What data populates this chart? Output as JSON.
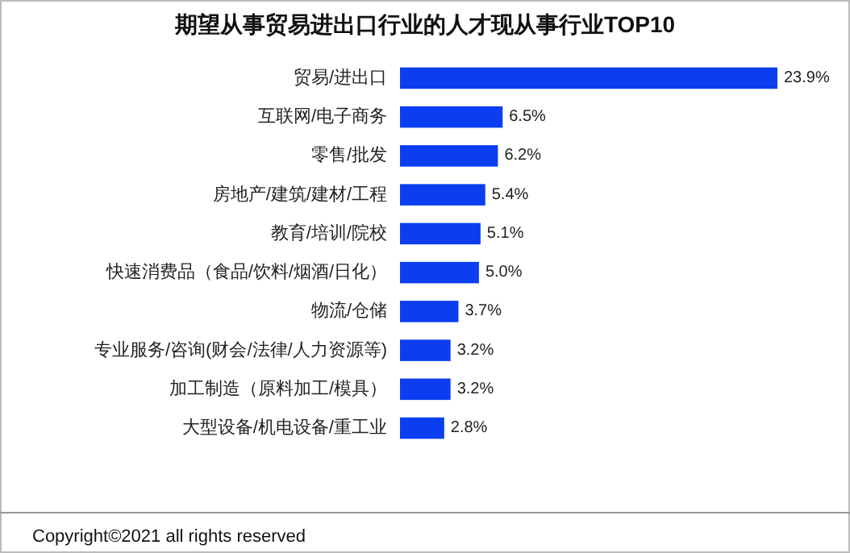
{
  "chart_data": {
    "type": "bar",
    "orientation": "horizontal",
    "title": "期望从事贸易进出口行业的人才现从事行业TOP10",
    "categories": [
      "贸易/进出口",
      "互联网/电子商务",
      "零售/批发",
      "房地产/建筑/建材/工程",
      "教育/培训/院校",
      "快速消费品（食品/饮料/烟酒/日化）",
      "物流/仓储",
      "专业服务/咨询(财会/法律/人力资源等)",
      "加工制造（原料加工/模具）",
      "大型设备/机电设备/重工业"
    ],
    "values": [
      23.9,
      6.5,
      6.2,
      5.4,
      5.1,
      5.0,
      3.7,
      3.2,
      3.2,
      2.8
    ],
    "value_labels": [
      "23.9%",
      "6.5%",
      "6.2%",
      "5.4%",
      "5.1%",
      "5.0%",
      "3.7%",
      "3.2%",
      "3.2%",
      "2.8%"
    ],
    "color": "#0b3ef0",
    "annotations": [
      "Copyright©2021 all rights reserved"
    ]
  }
}
